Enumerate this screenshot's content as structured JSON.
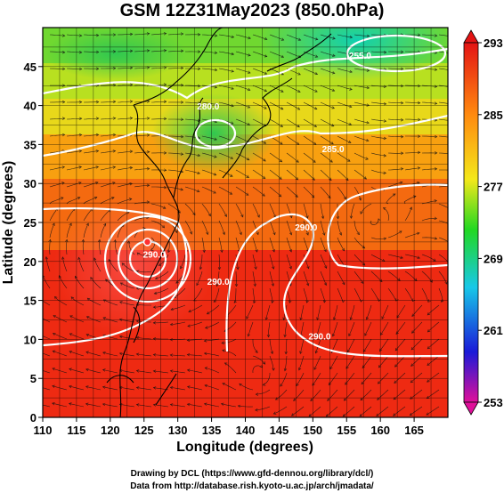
{
  "title": "GSM 12Z31May2023 (850.0hPa)",
  "x_axis": {
    "label": "Longitude (degrees)",
    "ticks": [
      "110",
      "115",
      "120",
      "125",
      "130",
      "135",
      "140",
      "145",
      "150",
      "155",
      "160",
      "165"
    ],
    "range": [
      110,
      170
    ]
  },
  "y_axis": {
    "label": "Latitude (degrees)",
    "ticks": [
      "0",
      "5",
      "10",
      "15",
      "20",
      "25",
      "30",
      "35",
      "40",
      "45"
    ],
    "range": [
      0,
      50
    ]
  },
  "colorbar": {
    "ticks": [
      "293",
      "285",
      "277",
      "269",
      "261",
      "253"
    ],
    "range": [
      253,
      293
    ],
    "colors": [
      "#e0109a",
      "#1a1ad8",
      "#18c8e8",
      "#22d822",
      "#f4e81a",
      "#ff8a10",
      "#e41414"
    ]
  },
  "contour_labels": [
    {
      "text": "255.0",
      "lon": 157,
      "lat": 46
    },
    {
      "text": "280.0",
      "lon": 134.5,
      "lat": 39.5
    },
    {
      "text": "285.0",
      "lon": 153,
      "lat": 34
    },
    {
      "text": "290.0",
      "lon": 149,
      "lat": 24
    },
    {
      "text": "290.0",
      "lon": 136,
      "lat": 17
    },
    {
      "text": "290.0",
      "lon": 126.5,
      "lat": 20.5
    },
    {
      "text": "290.0",
      "lon": 151,
      "lat": 10
    }
  ],
  "cyclone_center": {
    "lon": 125.5,
    "lat": 22.5
  },
  "credits": {
    "line1": "Drawing by DCL (https://www.gfd-dennou.org/library/dcl/)",
    "line2": "Data from http://database.rish.kyoto-u.ac.jp/arch/jmadata/"
  }
}
